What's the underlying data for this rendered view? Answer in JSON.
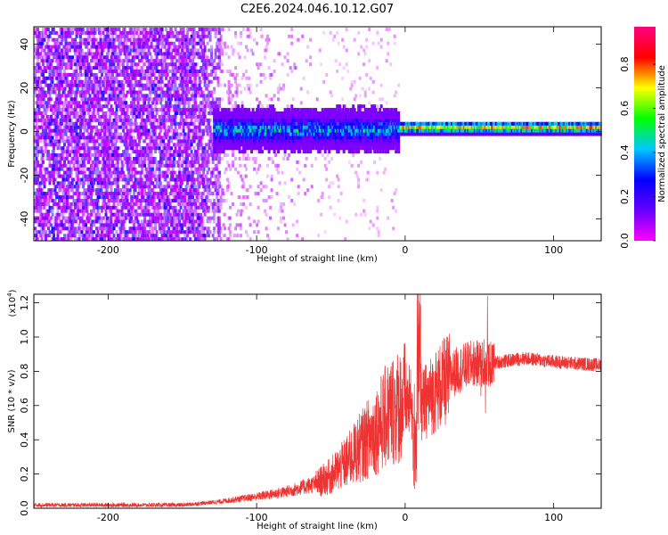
{
  "chart_data": [
    {
      "type": "heatmap",
      "title": "C2E6.2024.046.10.12.G07",
      "xlabel": "Height of straight line (km)",
      "ylabel": "Frequency (Hz)",
      "xlim": [
        -250,
        132
      ],
      "ylim": [
        -50,
        48
      ],
      "xticks": [
        -200,
        -100,
        0,
        100
      ],
      "yticks": [
        -40,
        -20,
        0,
        20,
        40
      ],
      "colorbar": {
        "label": "Normalized spectral amplitude",
        "range": [
          0.0,
          0.97
        ],
        "ticks": [
          0.0,
          0.2,
          0.4,
          0.6,
          0.8
        ],
        "colormap": [
          "#ff00ff",
          "#6600ff",
          "#0000ff",
          "#00c8ff",
          "#00ff00",
          "#ffff00",
          "#ff0000",
          "#ff0080"
        ]
      },
      "features": [
        {
          "x_range": [
            -250,
            -135
          ],
          "description_level": 0.2
        },
        {
          "x_range": [
            -130,
            -15
          ],
          "center_freq": 0,
          "half_width": 8,
          "peak_level": 0.5
        },
        {
          "x_range": [
            -5,
            132
          ],
          "center_freq": 1,
          "half_width": 3,
          "peak_level": 0.9
        }
      ]
    },
    {
      "type": "line",
      "xlabel": "Height of straight line (km)",
      "ylabel": "SNR (10 * v/v)",
      "y_multiplier": "(x10",
      "y_multiplier_exp": "4",
      "xlim": [
        -250,
        132
      ],
      "ylim": [
        0,
        1.25
      ],
      "xticks": [
        -200,
        -100,
        0,
        100
      ],
      "yticks": [
        0.0,
        0.2,
        0.4,
        0.6,
        0.8,
        1.0,
        1.2
      ],
      "series": [
        {
          "color": "#ee3333",
          "envelope_points": [
            [
              -250,
              0.02
            ],
            [
              -200,
              0.02
            ],
            [
              -150,
              0.02
            ],
            [
              -125,
              0.04
            ],
            [
              -100,
              0.07
            ],
            [
              -80,
              0.1
            ],
            [
              -60,
              0.15
            ],
            [
              -50,
              0.2
            ],
            [
              -40,
              0.28
            ],
            [
              -30,
              0.38
            ],
            [
              -20,
              0.48
            ],
            [
              -10,
              0.6
            ],
            [
              0,
              0.66
            ],
            [
              5,
              0.62
            ],
            [
              10,
              0.6
            ],
            [
              15,
              0.66
            ],
            [
              25,
              0.75
            ],
            [
              35,
              0.82
            ],
            [
              45,
              0.86
            ],
            [
              55,
              0.85
            ],
            [
              65,
              0.86
            ],
            [
              80,
              0.88
            ],
            [
              100,
              0.86
            ],
            [
              115,
              0.85
            ],
            [
              132,
              0.84
            ]
          ]
        }
      ]
    }
  ]
}
